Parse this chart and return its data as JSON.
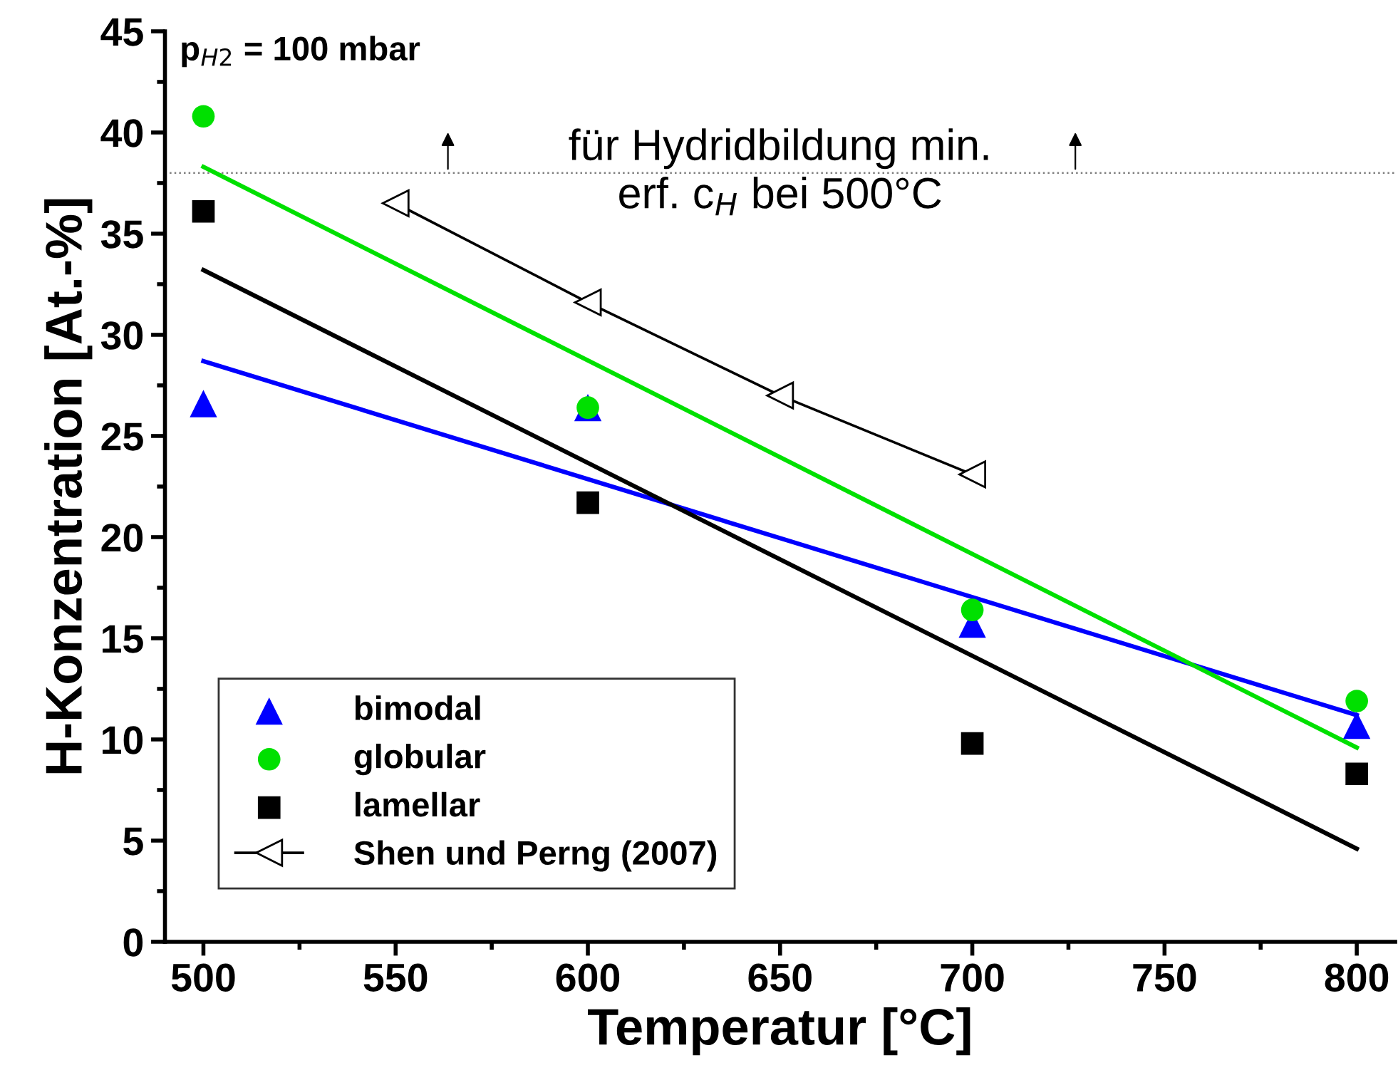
{
  "chart_data": {
    "type": "scatter",
    "xlabel": "Temperatur [°C]",
    "ylabel": "H-Konzentration [At.-%]",
    "xlim": [
      490,
      810
    ],
    "xticks": [
      500,
      550,
      600,
      650,
      700,
      750,
      800
    ],
    "ylim": [
      0,
      45
    ],
    "yticks": [
      0,
      5,
      10,
      15,
      20,
      25,
      30,
      35,
      40,
      45
    ],
    "grid": false,
    "legend": "bottom left",
    "annotations": [
      "p$_{H2}$ = 100 mbar"
    ],
    "ref_lines": [
      {
        "axis": "y",
        "value": 38,
        "label": "für Hydridbildung min.\nerf. c$_{H}$ bei 500°C",
        "color": "#808080",
        "line_style": "dotted"
      }
    ],
    "series": [
      {
        "name": "bimodal",
        "marker": "triangle",
        "color": "#0000ff",
        "x": [
          500,
          600,
          700,
          800
        ],
        "values": [
          26.6,
          26.4,
          15.7,
          10.7
        ]
      },
      {
        "name": "globular",
        "marker": "circle",
        "color": "#00e000",
        "x": [
          500,
          600,
          700,
          800
        ],
        "values": [
          40.8,
          26.4,
          16.4,
          11.9
        ]
      },
      {
        "name": "lamellar",
        "marker": "square",
        "color": "#000000",
        "x": [
          500,
          600,
          700,
          800
        ],
        "values": [
          36.1,
          21.7,
          9.8,
          8.3
        ]
      },
      {
        "name": "Shen und Perng (2007)",
        "type": "line",
        "marker": "triangle",
        "color": "#000000",
        "x": [
          550,
          600,
          650,
          700
        ],
        "values": [
          36.5,
          31.6,
          27.0,
          23.1
        ]
      },
      {
        "type": "line",
        "marker": "none",
        "color": "#0000ff",
        "x": [
          500,
          800
        ],
        "values": [
          28.7,
          11.2
        ]
      },
      {
        "type": "line",
        "marker": "none",
        "color": "#00e000",
        "x": [
          500,
          800
        ],
        "values": [
          38.3,
          9.6
        ]
      },
      {
        "type": "line",
        "marker": "none",
        "color": "#000000",
        "x": [
          500,
          800
        ],
        "values": [
          33.2,
          4.6
        ]
      }
    ]
  }
}
